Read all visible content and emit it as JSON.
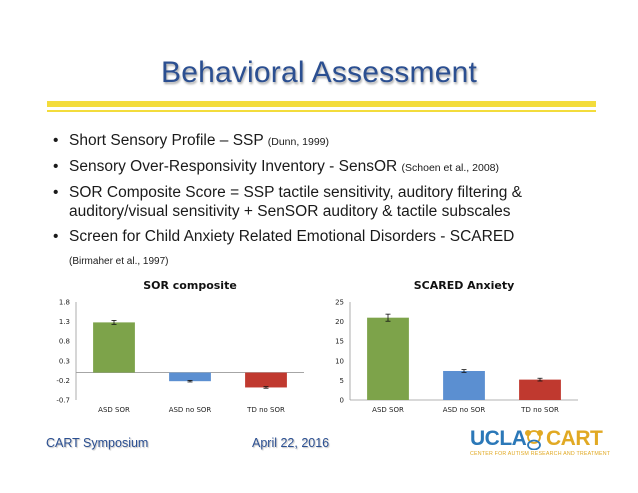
{
  "slide": {
    "title": "Behavioral Assessment",
    "bullets": [
      {
        "text": "Short Sensory Profile – SSP ",
        "cite": "(Dunn, 1999)"
      },
      {
        "text": "Sensory Over-Responsivity Inventory - SensOR ",
        "cite": "(Schoen et al., 2008)"
      },
      {
        "text": "SOR Composite Score = SSP tactile sensitivity, auditory filtering &",
        "cite": ""
      },
      {
        "text": "auditory/visual sensitivity + SenSOR auditory & tactile subscales",
        "cite": ""
      },
      {
        "text": "Screen for Child Anxiety Related Emotional Disorders - SCARED",
        "cite": ""
      }
    ],
    "sub_citation": "(Birmaher et al., 1997)",
    "bullet_glyph": "•",
    "footer_left": "CART Symposium",
    "footer_date": "April 22, 2016",
    "logo": {
      "ucla": "UCLA",
      "cart": "CART",
      "tagline": "CENTER FOR AUTISM RESEARCH AND TREATMENT"
    }
  },
  "colors": {
    "title": "#2b4f91",
    "rule": "#f3dc3c",
    "asd_sor": "#7da34a",
    "asd_no_sor": "#5b8fd1",
    "td_no_sor": "#c0392f"
  },
  "chart_data": [
    {
      "type": "bar",
      "title": "SOR composite",
      "categories": [
        "ASD SOR",
        "ASD no SOR",
        "TD no SOR"
      ],
      "values": [
        1.28,
        -0.22,
        -0.38
      ],
      "errors": [
        0.05,
        0.02,
        0.02
      ],
      "yticks": [
        1.8,
        1.3,
        0.8,
        0.3,
        -0.2,
        -0.7
      ],
      "ylim": [
        -0.7,
        1.8
      ],
      "colors": [
        "#7da34a",
        "#5b8fd1",
        "#c0392f"
      ]
    },
    {
      "type": "bar",
      "title": "SCARED Anxiety",
      "categories": [
        "ASD SOR",
        "ASD no SOR",
        "TD no SOR"
      ],
      "values": [
        21.0,
        7.4,
        5.2
      ],
      "errors": [
        0.9,
        0.35,
        0.35
      ],
      "yticks": [
        25,
        20,
        15,
        10,
        5,
        0
      ],
      "ylim": [
        0,
        25
      ],
      "colors": [
        "#7da34a",
        "#5b8fd1",
        "#c0392f"
      ]
    }
  ]
}
